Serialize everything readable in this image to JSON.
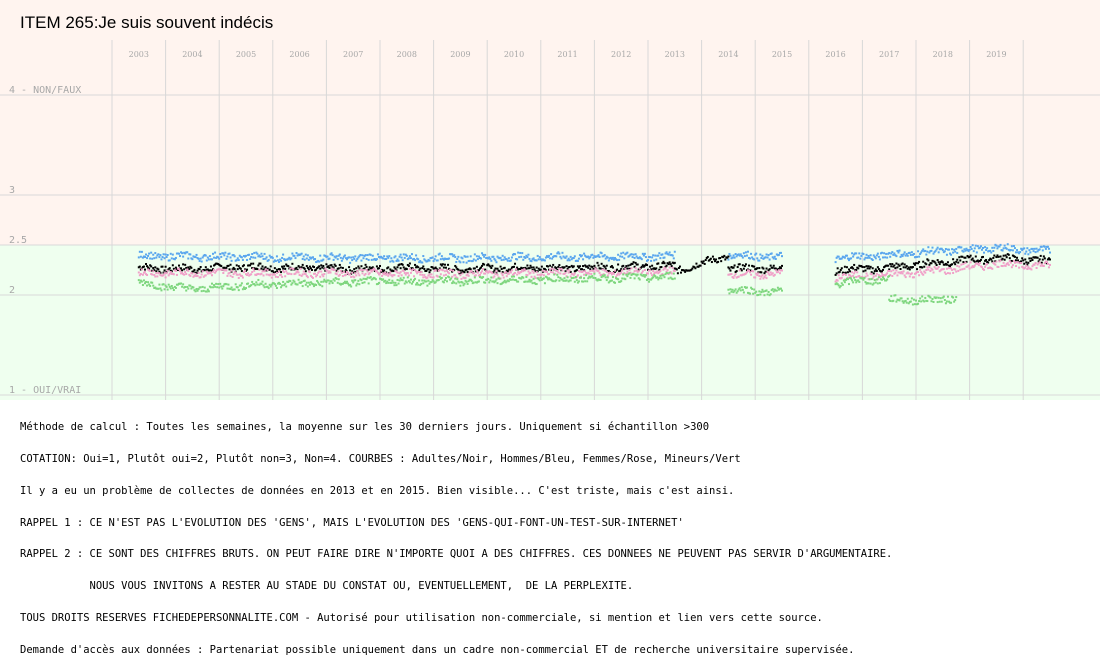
{
  "title": "ITEM 265:Je suis souvent indécis",
  "colors": {
    "upper_band": "#fff4ef",
    "lower_band": "#efffef",
    "gridline": "#d8d8d8",
    "axis_text": "#a8a8a8",
    "adultes": "#000000",
    "hommes": "#5aa6ee",
    "femmes": "#f0a0c8",
    "mineurs": "#7ed67e"
  },
  "chart_data": {
    "type": "scatter",
    "title": "ITEM 265:Je suis souvent indécis",
    "y_ticks": [
      {
        "value": 4,
        "label": "4 - NON/FAUX"
      },
      {
        "value": 3,
        "label": "3"
      },
      {
        "value": 2.5,
        "label": "2.5"
      },
      {
        "value": 2,
        "label": "2"
      },
      {
        "value": 1,
        "label": "1 - OUI/VRAI"
      }
    ],
    "ylim": [
      1,
      4
    ],
    "x_ticks": [
      "2003",
      "2004",
      "2005",
      "2006",
      "2007",
      "2008",
      "2009",
      "2010",
      "2011",
      "2012",
      "2013",
      "2014",
      "2015",
      "2016",
      "2017",
      "2018",
      "2019"
    ],
    "xlim": [
      "2002-07-01",
      "2020-01-01"
    ],
    "grid": true,
    "series": [
      {
        "name": "Adultes/Noir",
        "color": "#000000",
        "segments": [
          {
            "start": "2003-01",
            "end": "2012-12",
            "points": [
              [
                "2003-01",
                2.27
              ],
              [
                "2004-01",
                2.26
              ],
              [
                "2005-01",
                2.28
              ],
              [
                "2006-01",
                2.27
              ],
              [
                "2007-01",
                2.26
              ],
              [
                "2008-01",
                2.27
              ],
              [
                "2009-01",
                2.26
              ],
              [
                "2010-01",
                2.27
              ],
              [
                "2011-01",
                2.27
              ],
              [
                "2012-01",
                2.28
              ],
              [
                "2012-12",
                2.29
              ]
            ]
          },
          {
            "start": "2013-01",
            "end": "2013-12",
            "points": [
              [
                "2013-01",
                2.24
              ],
              [
                "2013-12",
                2.38
              ]
            ]
          },
          {
            "start": "2014-01",
            "end": "2014-12",
            "points": [
              [
                "2014-01",
                2.26
              ],
              [
                "2014-12",
                2.27
              ]
            ]
          },
          {
            "start": "2016-01",
            "end": "2019-12",
            "points": [
              [
                "2016-01",
                2.25
              ],
              [
                "2017-01",
                2.27
              ],
              [
                "2018-01",
                2.33
              ],
              [
                "2019-01",
                2.37
              ],
              [
                "2019-12",
                2.34
              ]
            ]
          }
        ]
      },
      {
        "name": "Hommes/Bleu",
        "color": "#5aa6ee",
        "segments": [
          {
            "start": "2003-01",
            "end": "2012-12",
            "points": [
              [
                "2003-01",
                2.39
              ],
              [
                "2005-01",
                2.38
              ],
              [
                "2007-01",
                2.37
              ],
              [
                "2009-01",
                2.37
              ],
              [
                "2011-01",
                2.38
              ],
              [
                "2012-12",
                2.39
              ]
            ]
          },
          {
            "start": "2014-01",
            "end": "2014-12",
            "points": [
              [
                "2014-01",
                2.4
              ],
              [
                "2014-12",
                2.38
              ]
            ]
          },
          {
            "start": "2016-01",
            "end": "2019-12",
            "points": [
              [
                "2016-01",
                2.37
              ],
              [
                "2017-01",
                2.4
              ],
              [
                "2018-01",
                2.44
              ],
              [
                "2019-01",
                2.47
              ],
              [
                "2019-12",
                2.44
              ]
            ]
          }
        ]
      },
      {
        "name": "Femmes/Rose",
        "color": "#f0a0c8",
        "segments": [
          {
            "start": "2003-01",
            "end": "2012-12",
            "points": [
              [
                "2003-01",
                2.22
              ],
              [
                "2005-01",
                2.22
              ],
              [
                "2007-01",
                2.22
              ],
              [
                "2009-01",
                2.21
              ],
              [
                "2011-01",
                2.22
              ],
              [
                "2012-12",
                2.23
              ]
            ]
          },
          {
            "start": "2014-01",
            "end": "2014-12",
            "points": [
              [
                "2014-01",
                2.2
              ],
              [
                "2014-12",
                2.21
              ]
            ]
          },
          {
            "start": "2016-01",
            "end": "2019-12",
            "points": [
              [
                "2016-01",
                2.18
              ],
              [
                "2017-01",
                2.2
              ],
              [
                "2018-01",
                2.25
              ],
              [
                "2019-01",
                2.31
              ],
              [
                "2019-12",
                2.29
              ]
            ]
          }
        ]
      },
      {
        "name": "Mineurs/Vert",
        "color": "#7ed67e",
        "segments": [
          {
            "start": "2003-01",
            "end": "2012-12",
            "points": [
              [
                "2003-01",
                2.12
              ],
              [
                "2004-01",
                2.06
              ],
              [
                "2005-01",
                2.1
              ],
              [
                "2007-01",
                2.13
              ],
              [
                "2009-01",
                2.14
              ],
              [
                "2011-01",
                2.16
              ],
              [
                "2012-12",
                2.18
              ]
            ]
          },
          {
            "start": "2014-01",
            "end": "2014-12",
            "points": [
              [
                "2014-01",
                2.05
              ],
              [
                "2014-12",
                2.03
              ]
            ]
          },
          {
            "start": "2016-01",
            "end": "2016-12",
            "points": [
              [
                "2016-01",
                2.12
              ],
              [
                "2016-12",
                2.16
              ]
            ]
          },
          {
            "start": "2017-01",
            "end": "2018-03",
            "points": [
              [
                "2017-01",
                1.95
              ],
              [
                "2017-12",
                1.95
              ],
              [
                "2018-03",
                1.97
              ]
            ]
          }
        ]
      }
    ]
  },
  "notes": [
    "Méthode de calcul : Toutes les semaines, la moyenne sur les 30 derniers jours. Uniquement si échantillon >300",
    "COTATION: Oui=1, Plutôt oui=2, Plutôt non=3, Non=4. COURBES : Adultes/Noir, Hommes/Bleu, Femmes/Rose, Mineurs/Vert",
    "Il y a eu un problème de collectes de données en 2013 et en 2015. Bien visible... C'est triste, mais c'est ainsi.",
    "RAPPEL 1 : CE N'EST PAS L'EVOLUTION DES 'GENS', MAIS L'EVOLUTION DES 'GENS-QUI-FONT-UN-TEST-SUR-INTERNET'",
    "RAPPEL 2 : CE SONT DES CHIFFRES BRUTS. ON PEUT FAIRE DIRE N'IMPORTE QUOI A DES CHIFFRES. CES DONNEES NE PEUVENT PAS SERVIR D'ARGUMENTAIRE.",
    "           NOUS VOUS INVITONS A RESTER AU STADE DU CONSTAT OU, EVENTUELLEMENT,  DE LA PERPLEXITE.",
    "TOUS DROITS RESERVES FICHEDEPERSONNALITE.COM - Autorisé pour utilisation non-commerciale, si mention et lien vers cette source.",
    "Demande d'accès aux données : Partenariat possible uniquement dans un cadre non-commercial ET de recherche universitaire supervisée."
  ]
}
